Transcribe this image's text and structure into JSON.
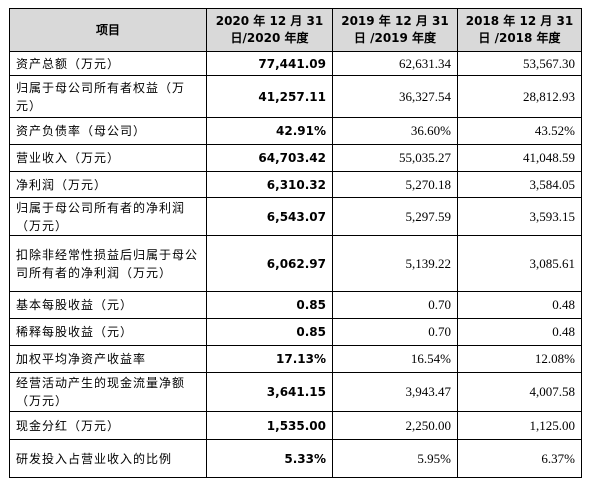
{
  "headers": [
    "项目",
    "2020 年 12 月 31 日/2020 年度",
    "2019 年 12 月 31 日 /2019 年度",
    "2018 年 12 月 31 日 /2018 年度"
  ],
  "rows": [
    {
      "label": "资产总额（万元）",
      "v2020": "77,441.09",
      "v2019": "62,631.34",
      "v2018": "53,567.30"
    },
    {
      "label": "归属于母公司所有者权益（万元）",
      "v2020": "41,257.11",
      "v2019": "36,327.54",
      "v2018": "28,812.93"
    },
    {
      "label": "资产负债率（母公司）",
      "v2020": "42.91%",
      "v2019": "36.60%",
      "v2018": "43.52%"
    },
    {
      "label": "营业收入（万元）",
      "v2020": "64,703.42",
      "v2019": "55,035.27",
      "v2018": "41,048.59"
    },
    {
      "label": "净利润（万元）",
      "v2020": "6,310.32",
      "v2019": "5,270.18",
      "v2018": "3,584.05"
    },
    {
      "label": "归属于母公司所有者的净利润（万元）",
      "v2020": "6,543.07",
      "v2019": "5,297.59",
      "v2018": "3,593.15"
    },
    {
      "label": "扣除非经常性损益后归属于母公司所有者的净利润（万元）",
      "v2020": "6,062.97",
      "v2019": "5,139.22",
      "v2018": "3,085.61"
    },
    {
      "label": "基本每股收益（元）",
      "v2020": "0.85",
      "v2019": "0.70",
      "v2018": "0.48"
    },
    {
      "label": "稀释每股收益（元）",
      "v2020": "0.85",
      "v2019": "0.70",
      "v2018": "0.48"
    },
    {
      "label": "加权平均净资产收益率",
      "v2020": "17.13%",
      "v2019": "16.54%",
      "v2018": "12.08%"
    },
    {
      "label": "经营活动产生的现金流量净额（万元）",
      "v2020": "3,641.15",
      "v2019": "3,943.47",
      "v2018": "4,007.58"
    },
    {
      "label": "现金分红（万元）",
      "v2020": "1,535.00",
      "v2019": "2,250.00",
      "v2018": "1,125.00"
    },
    {
      "label": "研发投入占营业收入的比例",
      "v2020": "5.33%",
      "v2019": "5.95%",
      "v2018": "6.37%"
    }
  ]
}
